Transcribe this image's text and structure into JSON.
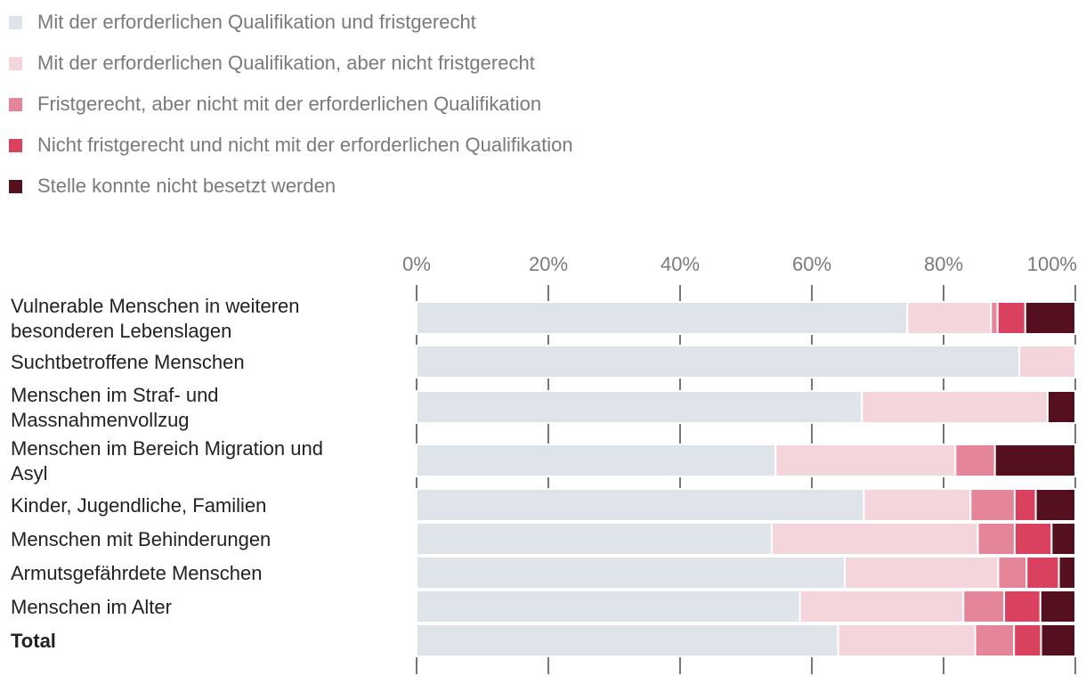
{
  "chart_data": {
    "type": "bar",
    "orientation": "horizontal",
    "stacked": true,
    "title": "",
    "xlabel": "",
    "ylabel": "",
    "xlim": [
      0,
      100
    ],
    "x_ticks": [
      0,
      20,
      40,
      60,
      80,
      100
    ],
    "tick_labels": [
      "0%",
      "20%",
      "40%",
      "60%",
      "80%",
      "100%"
    ],
    "grid": true,
    "legend_position": "top-left",
    "categories": [
      "Vulnerable Menschen in weiteren besonderen Lebenslagen",
      "Suchtbetroffene Menschen",
      "Menschen im Straf- und Massnahmenvollzug",
      "Menschen im Bereich Migration und Asyl",
      "Kinder, Jugendliche, Familien",
      "Menschen mit Behinderungen",
      "Armutsgefährdete Menschen",
      "Menschen im Alter",
      "Total"
    ],
    "category_lines": [
      [
        "Vulnerable Menschen in weiteren",
        "besonderen Lebenslagen"
      ],
      [
        "Suchtbetroffene Menschen"
      ],
      [
        "Menschen im Straf- und",
        "Massnahmenvollzug"
      ],
      [
        "Menschen im Bereich Migration und",
        "Asyl"
      ],
      [
        "Kinder, Jugendliche, Familien"
      ],
      [
        "Menschen mit Behinderungen"
      ],
      [
        "Armutsgefährdete Menschen"
      ],
      [
        "Menschen im Alter"
      ],
      [
        "Total"
      ]
    ],
    "bold_categories": [
      "Total"
    ],
    "series": [
      {
        "name": "Mit der erforderlichen Qualifikation und fristgerecht",
        "color": "#dfe4ea",
        "values": [
          74.5,
          91.5,
          67.6,
          54.5,
          67.9,
          53.9,
          65.0,
          58.2,
          64.0
        ]
      },
      {
        "name": "Mit der erforderlichen Qualifikation, aber nicht fristgerecht",
        "color": "#f5d5dc",
        "values": [
          12.7,
          8.5,
          28.2,
          27.3,
          16.2,
          31.3,
          23.3,
          24.8,
          20.8
        ]
      },
      {
        "name": "Fristgerecht, aber nicht mit der erforderlichen Qualifikation",
        "color": "#e48599",
        "values": [
          1.0,
          0,
          0,
          6.0,
          6.7,
          5.6,
          4.3,
          6.2,
          5.9
        ]
      },
      {
        "name": "Nicht fristgerecht und nicht mit der erforderlichen Qualifikation",
        "color": "#d9415f",
        "values": [
          4.2,
          0,
          0,
          0,
          3.2,
          5.6,
          4.9,
          5.5,
          4.1
        ]
      },
      {
        "name": "Stelle konnte nicht besetzt werden",
        "color": "#54101f",
        "values": [
          7.6,
          0,
          4.2,
          12.2,
          6.0,
          3.6,
          2.5,
          5.3,
          5.2
        ]
      }
    ]
  }
}
